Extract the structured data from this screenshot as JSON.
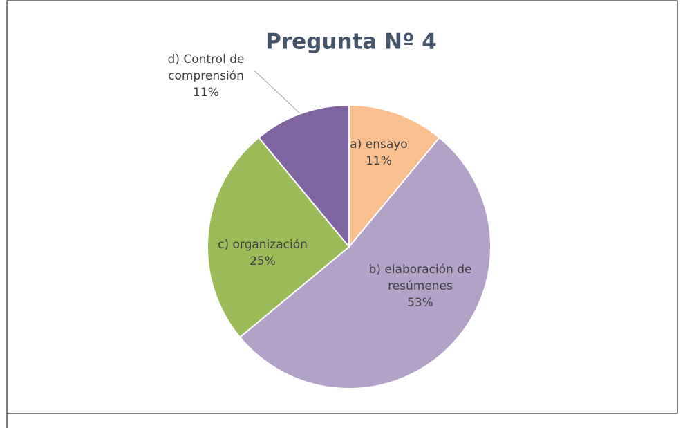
{
  "chart_data": {
    "type": "pie",
    "title": "Pregunta Nº 4",
    "categories": [
      "a) ensayo",
      "b) elaboración de resúmenes",
      "c) organización",
      "d) Control de comprensión"
    ],
    "values": [
      11,
      53,
      25,
      11
    ],
    "value_labels": [
      "11%",
      "53%",
      "25%",
      "11%"
    ],
    "colors": [
      "#f9bf8f",
      "#b3a2c7",
      "#9bbb59",
      "#8064a2"
    ]
  }
}
